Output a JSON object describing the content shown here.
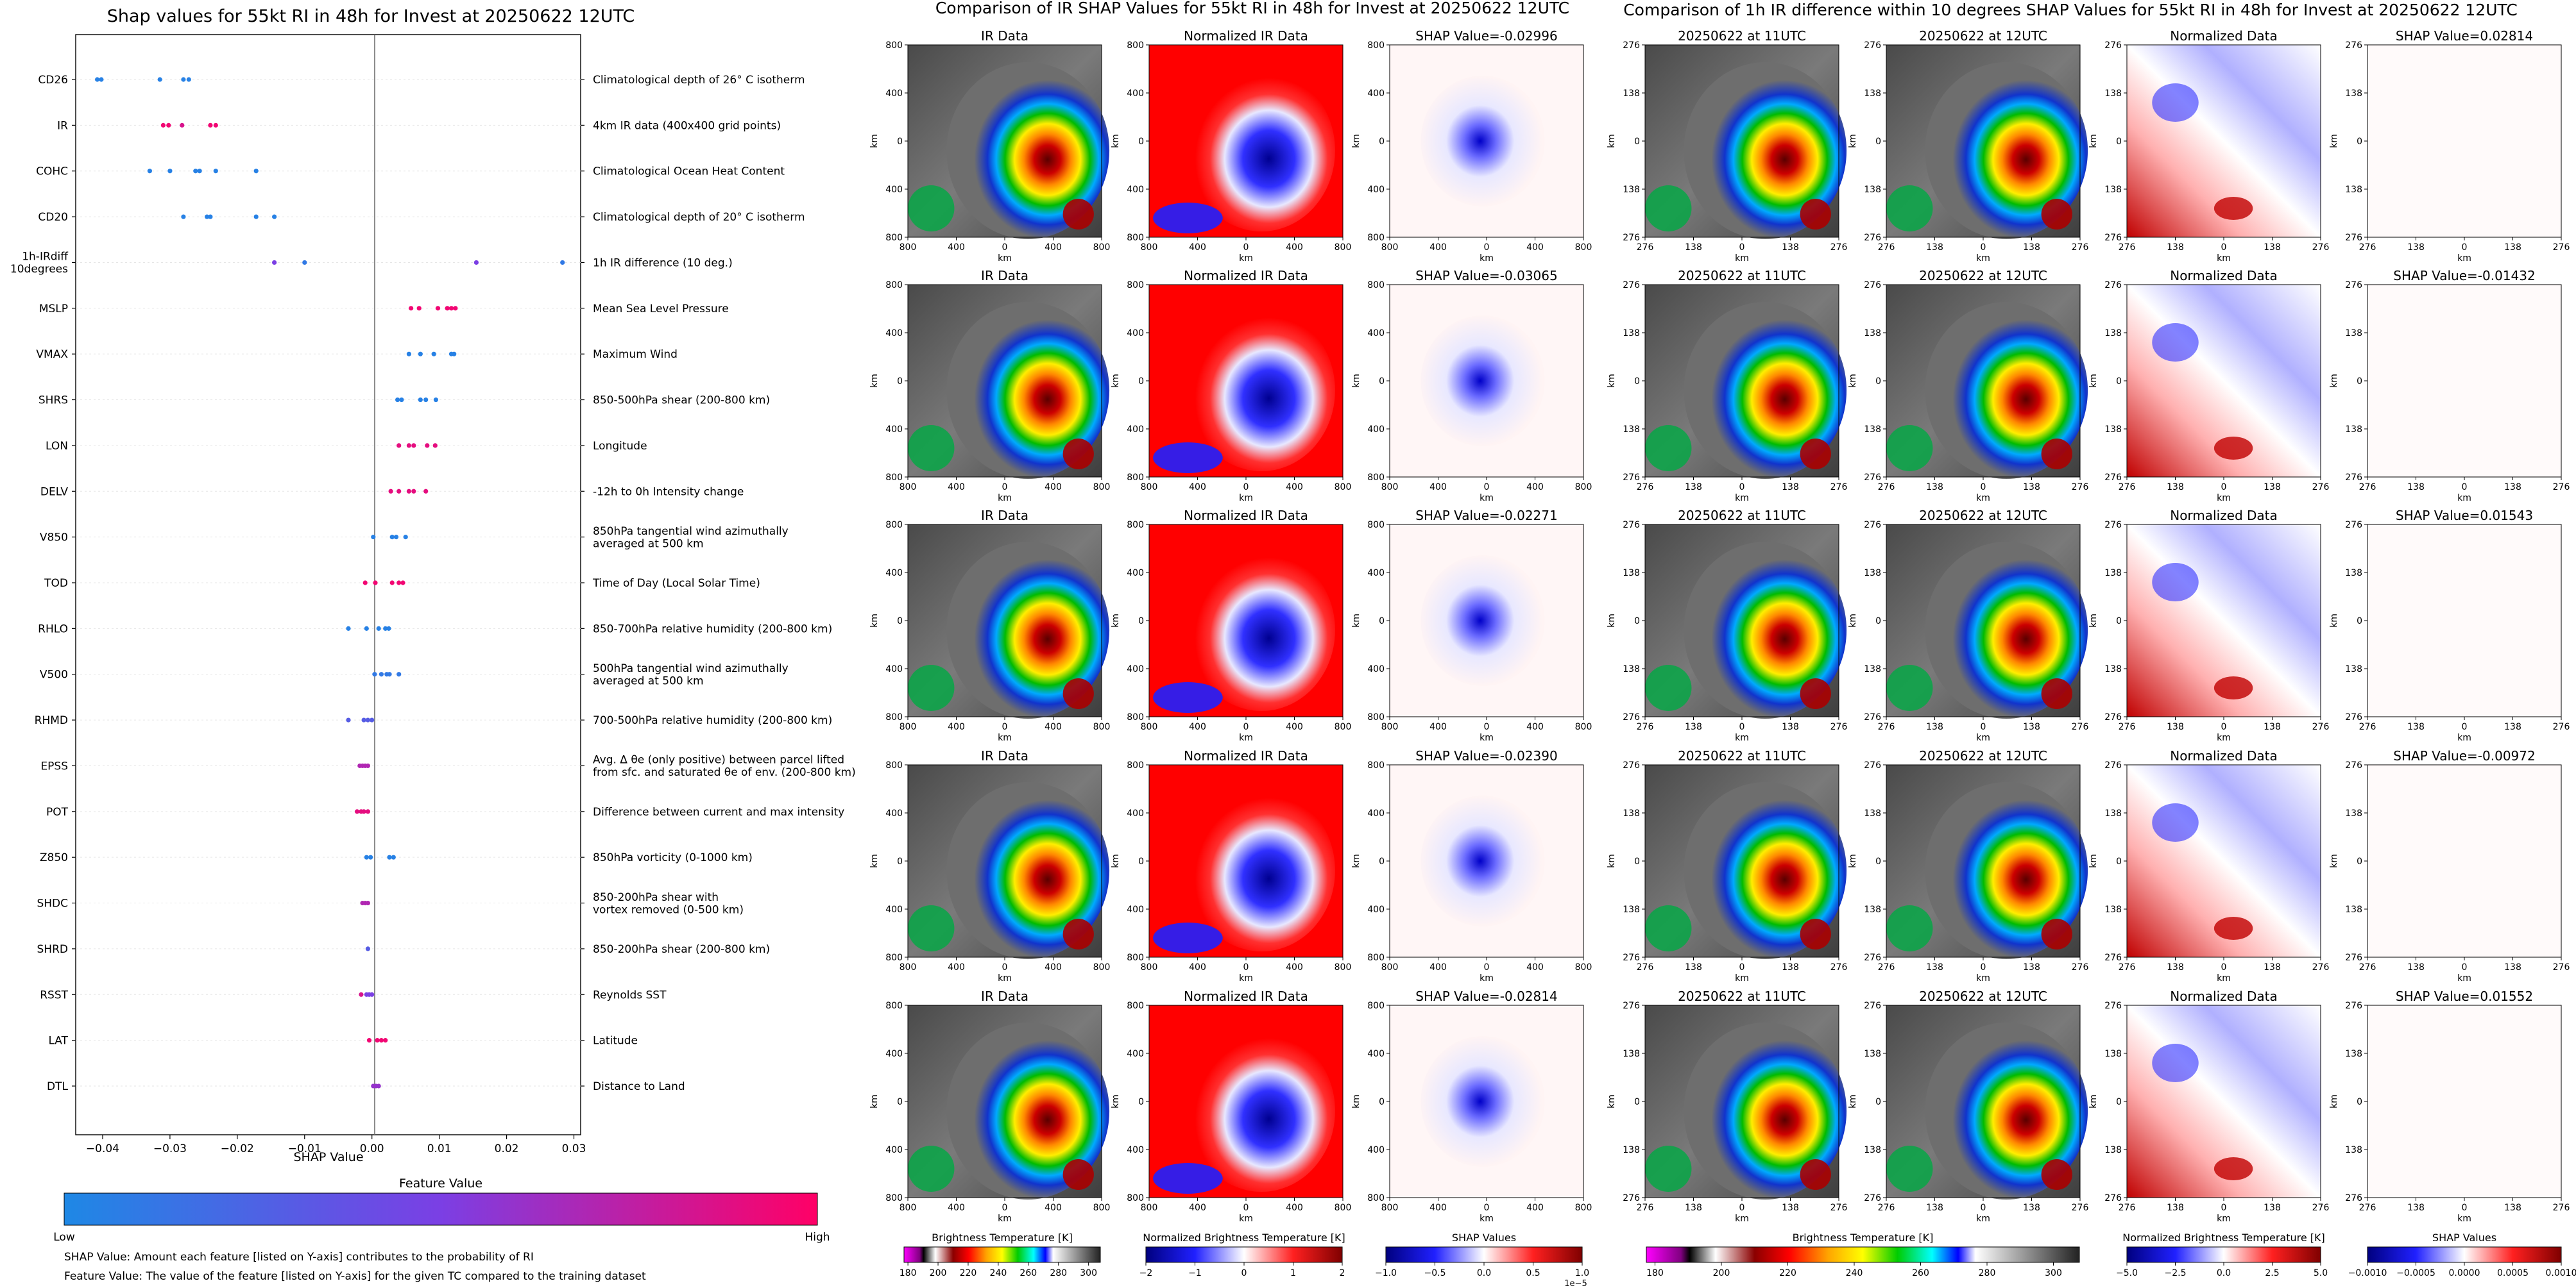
{
  "colors": {
    "low": "#1e88e5",
    "mid": "#7b3fe4",
    "high": "#ff0066",
    "panel_fill": "#ffffff",
    "axis": "#000000"
  },
  "left_panel": {
    "title": "Shap values for 55kt RI in 48h for Invest at 20250622 12UTC",
    "colorbar_title": "Feature Value",
    "colorbar_low": "Low",
    "colorbar_high": "High",
    "footnote1": "SHAP Value: Amount each feature [listed on Y-axis] contributes to the probability of RI",
    "footnote2": "Feature Value: The value of the feature [listed on Y-axis] for the given TC compared to the training dataset"
  },
  "middle_section": {
    "title": "Comparison of IR SHAP Values for 55kt RI in 48h for Invest at 20250622 12UTC",
    "col_titles": [
      "IR Data",
      "Normalized IR Data"
    ],
    "shap_titles": [
      "SHAP Value=-0.02996",
      "SHAP Value=-0.03065",
      "SHAP Value=-0.02271",
      "SHAP Value=-0.02390",
      "SHAP Value=-0.02814"
    ],
    "ticks": [
      "800",
      "400",
      "0",
      "400",
      "800"
    ],
    "axis_label": "km",
    "colorbars": [
      {
        "label": "Brightness Temperature [K]",
        "ticks": [
          "180",
          "200",
          "220",
          "240",
          "260",
          "280",
          "300"
        ]
      },
      {
        "label": "Normalized Brightness Temperature [K]",
        "ticks": [
          "−2",
          "−1",
          "0",
          "1",
          "2"
        ]
      },
      {
        "label": "SHAP Values",
        "ticks": [
          "−1.0",
          "−0.5",
          "0.0",
          "0.5",
          "1.0"
        ],
        "exponent": "1e−5"
      }
    ]
  },
  "right_section": {
    "title": "Comparison of 1h IR difference within 10 degrees SHAP Values for 55kt RI in 48h for Invest at 20250622 12UTC",
    "col_titles": [
      "20250622 at 11UTC",
      "20250622 at 12UTC",
      "Normalized Data"
    ],
    "shap_titles": [
      "SHAP Value=0.02814",
      "SHAP Value=-0.01432",
      "SHAP Value=0.01543",
      "SHAP Value=-0.00972",
      "SHAP Value=0.01552"
    ],
    "ticks": [
      "276",
      "138",
      "0",
      "138",
      "276"
    ],
    "axis_label": "km",
    "colorbars": [
      {
        "label": "Brightness Temperature [K]",
        "ticks": [
          "180",
          "200",
          "220",
          "240",
          "260",
          "280",
          "300"
        ]
      },
      {
        "label": "Normalized Brightness Temperature [K]",
        "ticks": [
          "−5.0",
          "−2.5",
          "0.0",
          "2.5",
          "5.0"
        ]
      },
      {
        "label": "SHAP Values",
        "ticks": [
          "−0.0010",
          "−0.0005",
          "0.0000",
          "0.0005",
          "0.0010"
        ]
      }
    ]
  },
  "chart_data": {
    "type": "scatter",
    "title": "Shap values for 55kt RI in 48h for Invest at 20250622 12UTC",
    "xlabel": "SHAP Value",
    "ylabel": "",
    "xlim": [
      -0.044,
      0.031
    ],
    "xticks": [
      -0.04,
      -0.03,
      -0.02,
      -0.01,
      0.0,
      0.01,
      0.02,
      0.03
    ],
    "xtick_labels": [
      "−0.04",
      "−0.03",
      "−0.02",
      "−0.01",
      "0.00",
      "0.01",
      "0.02",
      "0.03"
    ],
    "features": [
      {
        "name": "CD26",
        "desc": "Climatological depth of 26° C isotherm",
        "points": [
          [
            -0.0408,
            0.05
          ],
          [
            -0.0402,
            0.05
          ],
          [
            -0.0315,
            0.05
          ],
          [
            -0.028,
            0.05
          ],
          [
            -0.0272,
            0.05
          ]
        ]
      },
      {
        "name": "IR",
        "desc": "4km IR data (400x400 grid points)",
        "points": [
          [
            -0.031,
            0.95
          ],
          [
            -0.0302,
            0.95
          ],
          [
            -0.0282,
            0.85
          ],
          [
            -0.024,
            0.95
          ],
          [
            -0.0232,
            0.95
          ]
        ]
      },
      {
        "name": "COHC",
        "desc": "Climatological Ocean Heat Content",
        "points": [
          [
            -0.033,
            0.05
          ],
          [
            -0.03,
            0.05
          ],
          [
            -0.0262,
            0.05
          ],
          [
            -0.0256,
            0.05
          ],
          [
            -0.0232,
            0.05
          ],
          [
            -0.0172,
            0.05
          ]
        ]
      },
      {
        "name": "CD20",
        "desc": "Climatological depth of 20° C isotherm",
        "points": [
          [
            -0.028,
            0.05
          ],
          [
            -0.0245,
            0.05
          ],
          [
            -0.024,
            0.05
          ],
          [
            -0.0172,
            0.05
          ],
          [
            -0.0145,
            0.05
          ]
        ]
      },
      {
        "name": "1h-IRdiff\n10degrees",
        "desc": "1h IR difference (10 deg.)",
        "points": [
          [
            -0.0145,
            0.5
          ],
          [
            -0.01,
            0.1
          ],
          [
            0.0155,
            0.5
          ],
          [
            0.0283,
            0.1
          ]
        ]
      },
      {
        "name": "MSLP",
        "desc": "Mean Sea Level Pressure",
        "points": [
          [
            0.0058,
            0.95
          ],
          [
            0.007,
            0.95
          ],
          [
            0.0098,
            0.95
          ],
          [
            0.0112,
            0.95
          ],
          [
            0.0118,
            0.95
          ],
          [
            0.0124,
            0.95
          ]
        ]
      },
      {
        "name": "VMAX",
        "desc": "Maximum Wind",
        "points": [
          [
            0.0055,
            0.05
          ],
          [
            0.0072,
            0.05
          ],
          [
            0.0092,
            0.05
          ],
          [
            0.0118,
            0.05
          ],
          [
            0.0122,
            0.05
          ]
        ]
      },
      {
        "name": "SHRS",
        "desc": "850-500hPa shear (200-800 km)",
        "points": [
          [
            0.0038,
            0.05
          ],
          [
            0.0044,
            0.05
          ],
          [
            0.0072,
            0.05
          ],
          [
            0.008,
            0.05
          ],
          [
            0.0095,
            0.05
          ]
        ]
      },
      {
        "name": "LON",
        "desc": "Longitude",
        "points": [
          [
            0.004,
            0.9
          ],
          [
            0.0055,
            0.9
          ],
          [
            0.0062,
            0.9
          ],
          [
            0.0082,
            0.9
          ],
          [
            0.0094,
            0.9
          ]
        ]
      },
      {
        "name": "DELV",
        "desc": "-12h to 0h Intensity change",
        "points": [
          [
            0.0028,
            0.9
          ],
          [
            0.004,
            0.9
          ],
          [
            0.0055,
            0.9
          ],
          [
            0.0062,
            0.9
          ],
          [
            0.008,
            0.9
          ]
        ]
      },
      {
        "name": "V850",
        "desc": "850hPa tangential wind azimuthally\naveraged at 500 km",
        "points": [
          [
            0.0002,
            0.05
          ],
          [
            0.003,
            0.05
          ],
          [
            0.0036,
            0.05
          ],
          [
            0.005,
            0.05
          ]
        ]
      },
      {
        "name": "TOD",
        "desc": "Time of Day (Local Solar Time)",
        "points": [
          [
            -0.001,
            0.95
          ],
          [
            0.0005,
            0.95
          ],
          [
            0.003,
            0.95
          ],
          [
            0.004,
            0.95
          ],
          [
            0.0046,
            0.95
          ]
        ]
      },
      {
        "name": "RHLO",
        "desc": "850-700hPa relative humidity (200-800 km)",
        "points": [
          [
            -0.0035,
            0.05
          ],
          [
            -0.0008,
            0.05
          ],
          [
            0.001,
            0.05
          ],
          [
            0.002,
            0.05
          ],
          [
            0.0025,
            0.05
          ]
        ]
      },
      {
        "name": "V500",
        "desc": "500hPa tangential wind azimuthally\naveraged at 500 km",
        "points": [
          [
            0.0004,
            0.1
          ],
          [
            0.0014,
            0.1
          ],
          [
            0.0022,
            0.1
          ],
          [
            0.0026,
            0.1
          ],
          [
            0.004,
            0.1
          ]
        ]
      },
      {
        "name": "RHMD",
        "desc": "700-500hPa relative humidity (200-800 km)",
        "points": [
          [
            -0.0035,
            0.3
          ],
          [
            -0.0012,
            0.3
          ],
          [
            -0.0006,
            0.3
          ],
          [
            0.0,
            0.3
          ]
        ]
      },
      {
        "name": "EPSS",
        "desc": "Avg. Δ θe (only positive) between parcel lifted\nfrom sfc. and saturated θe of env. (200-800 km)",
        "points": [
          [
            -0.0018,
            0.7
          ],
          [
            -0.0014,
            0.7
          ],
          [
            -0.001,
            0.7
          ],
          [
            -0.0006,
            0.7
          ]
        ]
      },
      {
        "name": "POT",
        "desc": "Difference between current and max intensity",
        "points": [
          [
            -0.0022,
            0.9
          ],
          [
            -0.0016,
            0.9
          ],
          [
            -0.0012,
            0.9
          ],
          [
            -0.0006,
            0.9
          ]
        ]
      },
      {
        "name": "Z850",
        "desc": "850hPa vorticity (0-1000 km)",
        "points": [
          [
            -0.0008,
            0.05
          ],
          [
            -0.0002,
            0.05
          ],
          [
            0.0026,
            0.05
          ],
          [
            0.0032,
            0.05
          ]
        ]
      },
      {
        "name": "SHDC",
        "desc": "850-200hPa shear with\nvortex removed (0-500 km)",
        "points": [
          [
            -0.0014,
            0.7
          ],
          [
            -0.001,
            0.7
          ],
          [
            -0.0006,
            0.7
          ]
        ]
      },
      {
        "name": "SHRD",
        "desc": "850-200hPa shear (200-800 km)",
        "points": [
          [
            -0.0006,
            0.3
          ]
        ]
      },
      {
        "name": "RSST",
        "desc": "Reynolds SST",
        "points": [
          [
            -0.0016,
            0.85
          ],
          [
            -0.0008,
            0.5
          ],
          [
            -0.0004,
            0.5
          ],
          [
            0.0,
            0.5
          ]
        ]
      },
      {
        "name": "LAT",
        "desc": "Latitude",
        "points": [
          [
            -0.0004,
            0.95
          ],
          [
            0.0008,
            0.95
          ],
          [
            0.0014,
            0.95
          ],
          [
            0.002,
            0.95
          ]
        ]
      },
      {
        "name": "DTL",
        "desc": "Distance to Land",
        "points": [
          [
            0.0002,
            0.6
          ],
          [
            0.0006,
            0.6
          ],
          [
            0.001,
            0.6
          ]
        ]
      }
    ]
  }
}
